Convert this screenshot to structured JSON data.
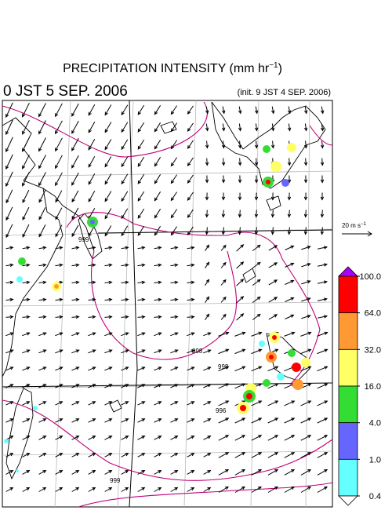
{
  "header": {
    "title": {
      "text": "PRECIPITATION INTENSITY (mm hr",
      "exponent": "−1",
      "close": ")"
    },
    "valid_time": "0 JST 5 SEP. 2006",
    "init_time": "(init. 9 JST 4 SEP. 2006)"
  },
  "wind_scale": {
    "text": "20 m s",
    "exponent": "−1"
  },
  "colorbar": {
    "levels": [
      {
        "value": 100,
        "label": "100.0"
      },
      {
        "value": 64,
        "label": "64.0"
      },
      {
        "value": 32,
        "label": "32.0"
      },
      {
        "value": 16,
        "label": "16.0"
      },
      {
        "value": 4,
        "label": "4.0"
      },
      {
        "value": 1,
        "label": "1.0"
      },
      {
        "value": 0.4,
        "label": "0.4"
      }
    ],
    "colors": [
      "#ff0000",
      "#ff9933",
      "#ffff66",
      "#33dd33",
      "#6666ff",
      "#66ffff"
    ],
    "over_color": "#aa00ff",
    "under_color": "#ffffff"
  },
  "contour_labels": [
    "999",
    "998",
    "998",
    "996",
    "999"
  ]
}
